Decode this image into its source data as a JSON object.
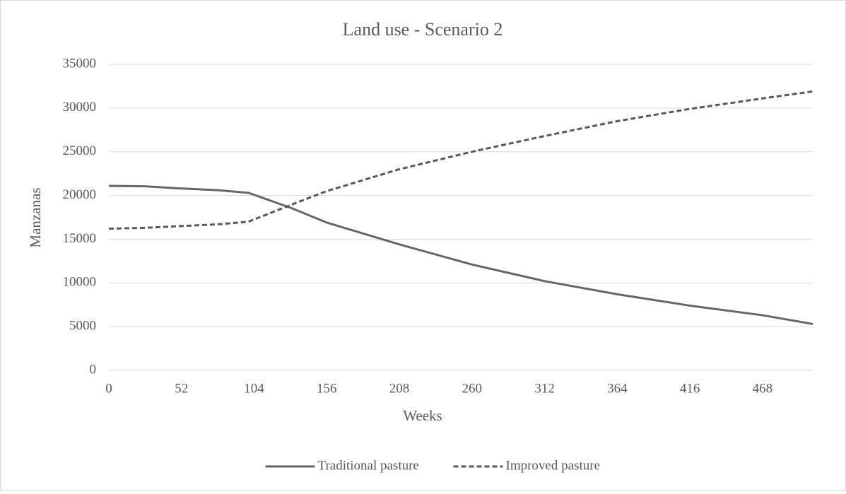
{
  "chart_data": {
    "type": "line",
    "title": "Land use - Scenario 2",
    "x_label": "Weeks",
    "y_label": "Manzanas",
    "x": [
      0,
      26,
      52,
      78,
      100,
      130,
      156,
      208,
      260,
      312,
      364,
      416,
      468,
      504
    ],
    "series": [
      {
        "name": "Traditional pasture",
        "color": "#666666",
        "line_style": "solid",
        "values": [
          21100,
          21050,
          20800,
          20600,
          20300,
          18600,
          16900,
          14400,
          12100,
          10200,
          8700,
          7400,
          6300,
          5300
        ]
      },
      {
        "name": "Improved pasture",
        "color": "#595959",
        "line_style": "dashed",
        "values": [
          16200,
          16300,
          16500,
          16700,
          17000,
          18900,
          20500,
          23000,
          25000,
          26800,
          28500,
          29900,
          31100,
          31900
        ]
      }
    ],
    "xlim": [
      0,
      504
    ],
    "xticks": [
      0,
      52,
      104,
      156,
      208,
      260,
      312,
      364,
      416,
      468
    ],
    "ylim": [
      0,
      35000
    ],
    "yticks": [
      0,
      5000,
      10000,
      15000,
      20000,
      25000,
      30000,
      35000
    ],
    "grid": true,
    "legend": "bottom"
  }
}
